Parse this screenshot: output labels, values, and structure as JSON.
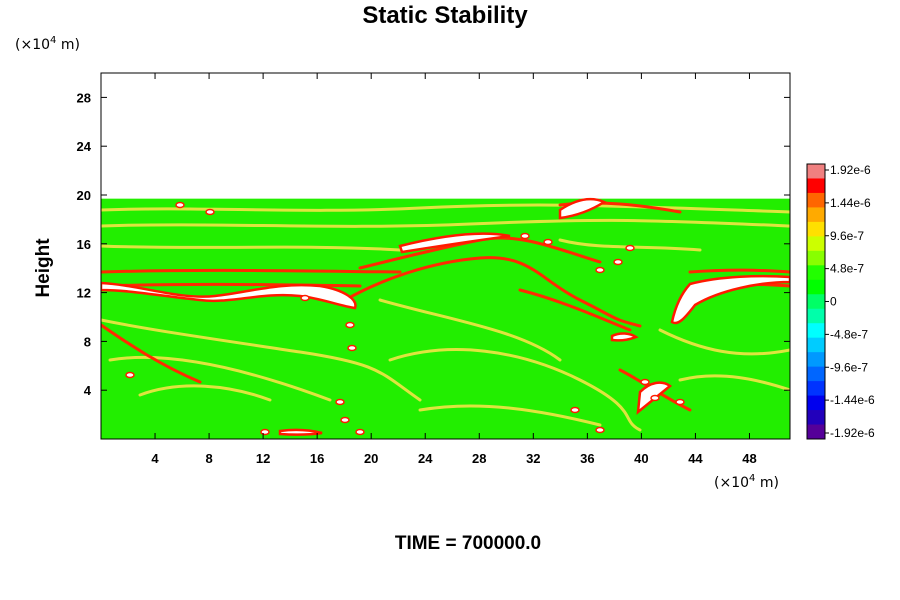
{
  "chart_data": {
    "type": "heatmap",
    "title": "Static Stability",
    "ylabel": "Height",
    "xlabel": "",
    "x_unit_prefix": "(×10",
    "x_unit_exp": "4",
    "x_unit_suffix": " m)",
    "y_unit_prefix": "(×10",
    "y_unit_exp": "4",
    "y_unit_suffix": " m)",
    "xlim": [
      0,
      51
    ],
    "ylim": [
      0,
      30
    ],
    "xticks": [
      4,
      8,
      12,
      16,
      20,
      24,
      28,
      32,
      36,
      40,
      44,
      48
    ],
    "yticks": [
      4,
      8,
      12,
      16,
      20,
      24,
      28
    ],
    "field_top": 19.7,
    "colorbar": {
      "labels": [
        "1.92e-6",
        "1.44e-6",
        "9.6e-7",
        "4.8e-7",
        "0",
        "-4.8e-7",
        "-9.6e-7",
        "-1.44e-6",
        "-1.92e-6"
      ],
      "colors": [
        "#f08080",
        "#ff0000",
        "#ff6600",
        "#ffaa00",
        "#ffe000",
        "#ccff00",
        "#88ff00",
        "#22ff00",
        "#00ff00",
        "#00ff66",
        "#00ffaa",
        "#00ffff",
        "#00ccff",
        "#0099ff",
        "#0066ff",
        "#0033ff",
        "#0000ee",
        "#2200bb",
        "#550099"
      ]
    },
    "time_label": "TIME = 700000.0"
  }
}
